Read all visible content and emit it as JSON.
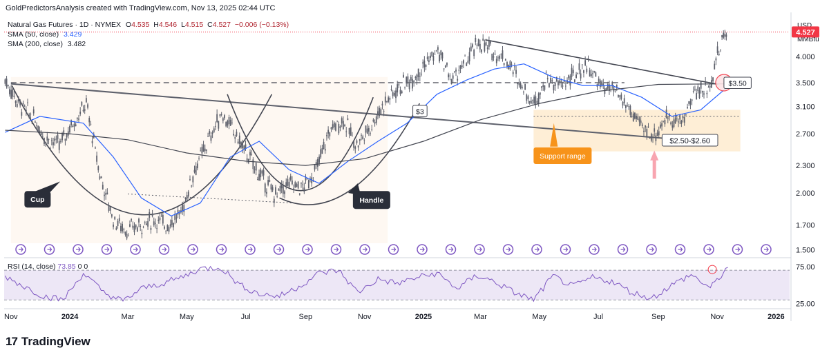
{
  "header": {
    "attribution": "GoldPredictorsAnalysis created with TradingView.com, Nov 13, 2025 02:44 UTC"
  },
  "legend": {
    "symbol": "Natural Gas Futures · 1D · NYMEX",
    "open_label": "O",
    "open": "4.535",
    "high_label": "H",
    "high": "4.546",
    "low_label": "L",
    "low": "4.515",
    "close_label": "C",
    "close": "4.527",
    "change": "−0.006 (−0.13%)",
    "sma50_label": "SMA (50, close)",
    "sma50_value": "3.429",
    "sma200_label": "SMA (200, close)",
    "sma200_value": "3.482"
  },
  "rsi_legend": {
    "label": "RSI (14, close)",
    "value": "73.85",
    "extra": "0  0"
  },
  "price_axis": {
    "unit_top": "USD",
    "unit_bottom": "MMBtu",
    "last_price": "4.527"
  },
  "annotations": {
    "cup": "Cup",
    "handle": "Handle",
    "support_range": "Support range",
    "level_3": "$3",
    "level_350": "$3.50",
    "range_label": "$2.50-$2.60"
  },
  "footer": {
    "brand": "TradingView"
  },
  "colors": {
    "candle_up": "#089981",
    "candle_down": "#f23645",
    "candles": "#5d606b",
    "sma50": "#2962ff",
    "sma200": "#434651",
    "rsi": "#7e57c2",
    "rsi_band": "#ede7f6",
    "support_zone": "#fde8c8",
    "support_badge": "#f7931a",
    "price_badge": "#f23645",
    "arrow": "#f8a5b0"
  },
  "chart_data": [
    {
      "type": "line",
      "title": "Natural Gas Futures · 1D · NYMEX",
      "scale": "log",
      "ylim": [
        1.45,
        5.0
      ],
      "y_ticks": [
        "4.000",
        "3.500",
        "3.100",
        "2.700",
        "2.300",
        "2.000",
        "1.700",
        "1.500"
      ],
      "x_ticks": [
        "Nov",
        "2024",
        "Mar",
        "May",
        "Jul",
        "Sep",
        "Nov",
        "2025",
        "Mar",
        "May",
        "Jul",
        "Sep",
        "Nov",
        "2026"
      ],
      "x_range": [
        "2023-10-25",
        "2026-01-15"
      ],
      "series": [
        {
          "name": "Natural Gas Futures (daily close)",
          "x": [
            "2023-10-26",
            "2023-11-09",
            "2023-11-23",
            "2023-12-07",
            "2023-12-21",
            "2024-01-04",
            "2024-01-18",
            "2024-02-01",
            "2024-02-15",
            "2024-02-29",
            "2024-03-14",
            "2024-03-28",
            "2024-04-11",
            "2024-04-25",
            "2024-05-09",
            "2024-05-23",
            "2024-06-06",
            "2024-06-20",
            "2024-07-04",
            "2024-07-18",
            "2024-08-01",
            "2024-08-15",
            "2024-08-29",
            "2024-09-12",
            "2024-09-26",
            "2024-10-10",
            "2024-10-24",
            "2024-11-07",
            "2024-11-21",
            "2024-12-05",
            "2024-12-19",
            "2025-01-02",
            "2025-01-16",
            "2025-01-30",
            "2025-02-13",
            "2025-02-27",
            "2025-03-13",
            "2025-03-27",
            "2025-04-10",
            "2025-04-24",
            "2025-05-08",
            "2025-05-22",
            "2025-06-05",
            "2025-06-19",
            "2025-07-03",
            "2025-07-17",
            "2025-07-31",
            "2025-08-14",
            "2025-08-28",
            "2025-09-11",
            "2025-09-25",
            "2025-10-09",
            "2025-10-23",
            "2025-11-06",
            "2025-11-12"
          ],
          "values": [
            3.55,
            3.15,
            2.95,
            2.65,
            2.55,
            2.85,
            3.15,
            2.2,
            1.75,
            1.65,
            1.7,
            1.75,
            1.7,
            1.8,
            2.25,
            2.6,
            3.0,
            2.7,
            2.4,
            2.15,
            1.98,
            2.1,
            2.05,
            2.25,
            2.75,
            2.9,
            2.55,
            2.8,
            3.15,
            3.4,
            3.55,
            3.85,
            4.1,
            3.55,
            3.85,
            4.3,
            4.1,
            3.95,
            3.55,
            3.15,
            3.55,
            3.45,
            3.6,
            3.85,
            3.45,
            3.35,
            3.1,
            2.8,
            2.68,
            2.95,
            2.85,
            3.35,
            3.4,
            4.35,
            4.527
          ]
        },
        {
          "name": "SMA (50, close)",
          "x": [
            "2023-10-26",
            "2023-12-01",
            "2024-01-15",
            "2024-02-15",
            "2024-03-15",
            "2024-04-15",
            "2024-05-15",
            "2024-06-15",
            "2024-07-15",
            "2024-08-15",
            "2024-09-15",
            "2024-10-15",
            "2024-11-15",
            "2024-12-15",
            "2025-01-15",
            "2025-02-15",
            "2025-03-15",
            "2025-04-15",
            "2025-05-15",
            "2025-06-15",
            "2025-07-15",
            "2025-08-15",
            "2025-09-15",
            "2025-10-15",
            "2025-11-12"
          ],
          "values": [
            2.72,
            2.95,
            2.85,
            2.4,
            1.95,
            1.78,
            1.9,
            2.4,
            2.6,
            2.25,
            2.1,
            2.35,
            2.6,
            2.85,
            3.3,
            3.55,
            3.75,
            3.85,
            3.6,
            3.45,
            3.45,
            3.25,
            2.95,
            3.05,
            3.43
          ]
        },
        {
          "name": "SMA (200, close)",
          "x": [
            "2023-10-26",
            "2024-01-01",
            "2024-03-01",
            "2024-05-01",
            "2024-07-01",
            "2024-09-01",
            "2024-11-01",
            "2025-01-01",
            "2025-03-01",
            "2025-05-01",
            "2025-07-01",
            "2025-09-01",
            "2025-11-12"
          ],
          "values": [
            2.75,
            2.7,
            2.62,
            2.45,
            2.35,
            2.3,
            2.38,
            2.6,
            2.9,
            3.15,
            3.35,
            3.47,
            3.48
          ]
        }
      ],
      "levels": [
        3.5,
        3.0
      ],
      "support_range": [
        2.5,
        2.6
      ]
    },
    {
      "type": "line",
      "title": "RSI (14, close)",
      "ylim": [
        20,
        85
      ],
      "y_ticks": [
        "75.00",
        "25.00"
      ],
      "guides": [
        70,
        30
      ],
      "series": [
        {
          "name": "RSI (14, close)",
          "x": [
            "2023-10-26",
            "2023-11-15",
            "2023-12-05",
            "2023-12-25",
            "2024-01-15",
            "2024-02-05",
            "2024-02-25",
            "2024-03-15",
            "2024-04-05",
            "2024-04-25",
            "2024-05-15",
            "2024-06-05",
            "2024-06-25",
            "2024-07-15",
            "2024-08-05",
            "2024-08-25",
            "2024-09-15",
            "2024-10-05",
            "2024-10-25",
            "2024-11-15",
            "2024-12-05",
            "2024-12-25",
            "2025-01-15",
            "2025-02-05",
            "2025-02-25",
            "2025-03-15",
            "2025-04-05",
            "2025-04-25",
            "2025-05-15",
            "2025-06-05",
            "2025-06-25",
            "2025-07-15",
            "2025-08-05",
            "2025-08-25",
            "2025-09-15",
            "2025-10-05",
            "2025-10-25",
            "2025-11-12"
          ],
          "values": [
            62,
            48,
            35,
            30,
            66,
            40,
            28,
            45,
            52,
            60,
            72,
            74,
            50,
            38,
            35,
            48,
            66,
            70,
            40,
            58,
            52,
            60,
            66,
            45,
            63,
            55,
            40,
            30,
            62,
            48,
            60,
            55,
            40,
            32,
            50,
            64,
            46,
            73.85
          ]
        }
      ]
    }
  ]
}
